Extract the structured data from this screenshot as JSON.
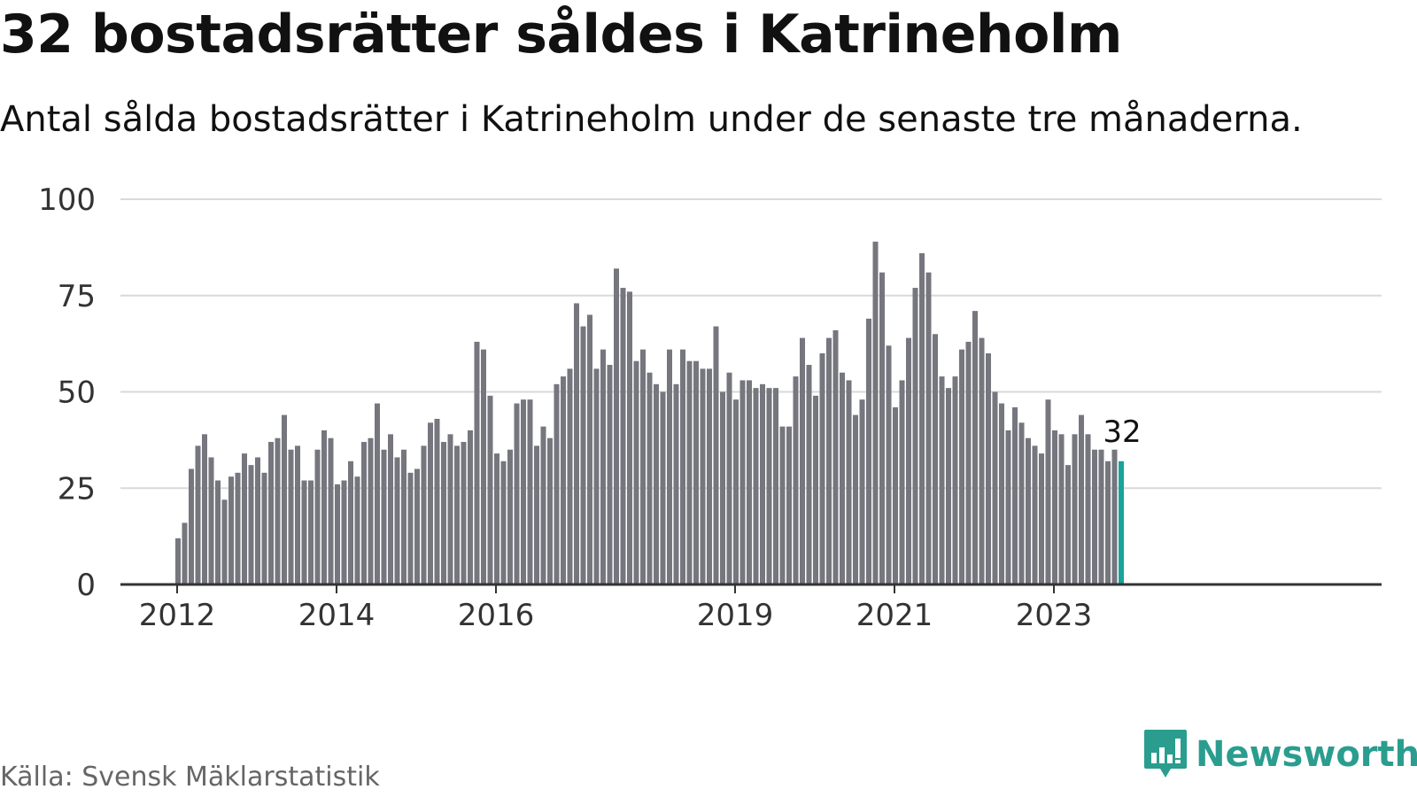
{
  "header": {
    "title": "32 bostadsrätter såldes i Katrineholm",
    "subtitle": "Antal sålda bostadsrätter i Katrineholm under de senaste tre månaderna."
  },
  "footer": {
    "source": "Källa: Svensk Mäklarstatistik",
    "brand": "Newsworthy"
  },
  "colors": {
    "bar": "#76767e",
    "highlight": "#17a599",
    "grid": "#d9d9d9",
    "axis": "#333333",
    "brand": "#2a9d8f"
  },
  "chart_data": {
    "type": "bar",
    "title": "32 bostadsrätter såldes i Katrineholm",
    "subtitle": "Antal sålda bostadsrätter i Katrineholm under de senaste tre månaderna.",
    "xlabel": "",
    "ylabel": "",
    "ylim": [
      0,
      100
    ],
    "yticks": [
      0,
      25,
      50,
      75,
      100
    ],
    "grid": true,
    "start": "2012-01",
    "end": "2023-11",
    "xticks": [
      {
        "label": "2012",
        "month": "2012-01"
      },
      {
        "label": "2014",
        "month": "2014-01"
      },
      {
        "label": "2016",
        "month": "2016-01"
      },
      {
        "label": "2019",
        "month": "2019-01"
      },
      {
        "label": "2021",
        "month": "2021-01"
      },
      {
        "label": "2023",
        "month": "2023-01"
      }
    ],
    "values": [
      12,
      16,
      30,
      36,
      39,
      33,
      27,
      22,
      28,
      29,
      34,
      31,
      33,
      29,
      37,
      38,
      44,
      35,
      36,
      27,
      27,
      35,
      40,
      38,
      26,
      27,
      32,
      28,
      37,
      38,
      47,
      35,
      39,
      33,
      35,
      29,
      30,
      36,
      42,
      43,
      37,
      39,
      36,
      37,
      40,
      63,
      61,
      49,
      34,
      32,
      35,
      47,
      48,
      48,
      36,
      41,
      38,
      52,
      54,
      56,
      73,
      67,
      70,
      56,
      61,
      57,
      82,
      77,
      76,
      58,
      61,
      55,
      52,
      50,
      61,
      52,
      61,
      58,
      58,
      56,
      56,
      67,
      50,
      55,
      48,
      53,
      53,
      51,
      52,
      51,
      51,
      41,
      41,
      54,
      64,
      57,
      49,
      60,
      64,
      66,
      55,
      53,
      44,
      48,
      69,
      89,
      81,
      62,
      46,
      53,
      64,
      77,
      86,
      81,
      65,
      54,
      51,
      54,
      61,
      63,
      71,
      64,
      60,
      50,
      47,
      40,
      46,
      42,
      38,
      36,
      34,
      48,
      40,
      39,
      31,
      39,
      44,
      39,
      35,
      35,
      32,
      35,
      32
    ],
    "highlight_last": true,
    "last_label": "32"
  }
}
